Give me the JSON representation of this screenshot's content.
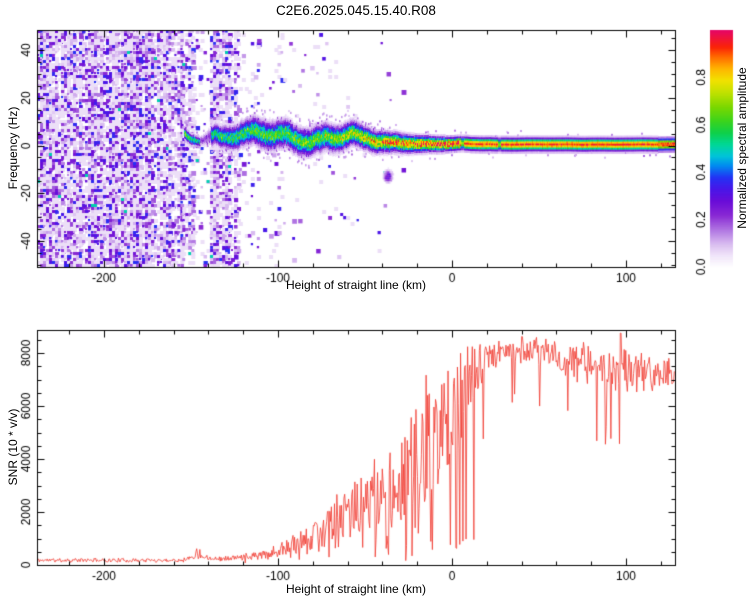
{
  "page": {
    "title": "C2E6.2025.045.15.40.R08",
    "background": "#ffffff"
  },
  "chart_data": [
    {
      "type": "heatmap",
      "name": "spectrogram",
      "title": "C2E6.2025.045.15.40.R08",
      "xlabel": "Height of straight line (km)",
      "ylabel": "Frequency (Hz)",
      "xlim": [
        -238.5,
        128.2
      ],
      "ylim": [
        -51,
        48.5
      ],
      "xticks": [
        -200,
        -100,
        0,
        100
      ],
      "yticks": [
        -40,
        -20,
        0,
        20,
        40
      ],
      "x_minor_step": 20,
      "y_minor_step": 5,
      "colorbar": {
        "label": "Normalized spectral amplitude",
        "tick_labels": [
          "0.0",
          "0.2",
          "0.4",
          "0.6",
          "0.8"
        ],
        "tick_values": [
          0,
          0.2,
          0.4,
          0.6,
          0.8
        ],
        "range": [
          0,
          1
        ]
      },
      "colormap": [
        [
          0.0,
          "#ffffff"
        ],
        [
          0.05,
          "#f1e6fa"
        ],
        [
          0.1,
          "#d9bcf0"
        ],
        [
          0.16,
          "#b075e2"
        ],
        [
          0.22,
          "#8a2ad4"
        ],
        [
          0.28,
          "#6a0dd8"
        ],
        [
          0.33,
          "#4a16e8"
        ],
        [
          0.38,
          "#2433f4"
        ],
        [
          0.43,
          "#008cf0"
        ],
        [
          0.47,
          "#00c4da"
        ],
        [
          0.52,
          "#00d896"
        ],
        [
          0.57,
          "#10d048"
        ],
        [
          0.62,
          "#3ed41c"
        ],
        [
          0.68,
          "#7ed800"
        ],
        [
          0.74,
          "#c3e200"
        ],
        [
          0.79,
          "#f2e200"
        ],
        [
          0.84,
          "#ffb400"
        ],
        [
          0.89,
          "#ff6a00"
        ],
        [
          0.93,
          "#fb2408"
        ],
        [
          1.0,
          "#e60766"
        ]
      ],
      "noise_regions": [
        [
          -238.5,
          -163,
          0.92
        ],
        [
          -163,
          -155,
          0.8
        ],
        [
          -155,
          -149,
          0.55
        ],
        [
          -149,
          -144.5,
          0.22
        ],
        [
          -144.5,
          -139,
          0.1
        ],
        [
          -139,
          -127,
          0.8
        ],
        [
          -127,
          -122.5,
          0.55
        ],
        [
          -122.5,
          -112,
          0.1
        ],
        [
          -112,
          -102,
          0.05
        ],
        [
          -102,
          -97,
          0.12
        ],
        [
          -97,
          -60,
          0.03
        ],
        [
          -60,
          -25,
          0.012
        ]
      ],
      "band": {
        "start_km": -153.5,
        "gap_km": [
          -145,
          -139
        ],
        "wiggle_end_km": 22,
        "center_hz": [
          [
            -153,
            5.2
          ],
          [
            -120,
            4.6
          ],
          [
            -70,
            3.4
          ],
          [
            -40,
            2.2
          ],
          [
            -20,
            1.1
          ],
          [
            0,
            0.85
          ],
          [
            128,
            0.8
          ]
        ],
        "halfwidth_hz": [
          [
            -153,
            1.8
          ],
          [
            -145,
            1.5
          ],
          [
            -138,
            3.0
          ],
          [
            -110,
            4.3
          ],
          [
            -70,
            4.0
          ],
          [
            -40,
            3.1
          ],
          [
            -20,
            2.5
          ],
          [
            0,
            2.1
          ],
          [
            128,
            2.0
          ]
        ],
        "amplitude": [
          [
            -153,
            0.62
          ],
          [
            -146,
            0.5
          ],
          [
            -138,
            0.56
          ],
          [
            -100,
            0.6
          ],
          [
            -70,
            0.66
          ],
          [
            -50,
            0.73
          ],
          [
            -35,
            0.85
          ],
          [
            -22,
            0.9
          ],
          [
            -10,
            0.94
          ],
          [
            5,
            0.96
          ],
          [
            128,
            0.97
          ]
        ],
        "core_blips_km": [
          6,
          27
        ],
        "blob": {
          "km": -37,
          "hz": -12.5,
          "amp": 0.34
        }
      },
      "seed": 7
    },
    {
      "type": "line",
      "name": "snr",
      "xlabel": "Height of straight line (km)",
      "ylabel": "SNR (10 * v/v)",
      "xlim": [
        -238.5,
        128.2
      ],
      "ylim": [
        0,
        8868
      ],
      "xticks": [
        -200,
        -100,
        0,
        100
      ],
      "yticks": [
        0,
        2000,
        4000,
        6000,
        8000
      ],
      "x_minor_step": 20,
      "y_minor_step": 500,
      "color": "#f03a30",
      "envelope": [
        [
          -238,
          180,
          90
        ],
        [
          -160,
          180,
          90
        ],
        [
          -152,
          220,
          120
        ],
        [
          -146,
          480,
          260
        ],
        [
          -142,
          300,
          150
        ],
        [
          -132,
          230,
          110
        ],
        [
          -120,
          300,
          150
        ],
        [
          -110,
          380,
          220
        ],
        [
          -100,
          520,
          320
        ],
        [
          -90,
          750,
          500
        ],
        [
          -80,
          1050,
          750
        ],
        [
          -70,
          1500,
          1000
        ],
        [
          -60,
          1900,
          1250
        ],
        [
          -50,
          2300,
          1500
        ],
        [
          -40,
          2700,
          1900
        ],
        [
          -30,
          3100,
          2300
        ],
        [
          -22,
          3500,
          2800
        ],
        [
          -16,
          4200,
          3300
        ],
        [
          -10,
          4800,
          3200
        ],
        [
          -4,
          5400,
          2800
        ],
        [
          2,
          6000,
          2400
        ],
        [
          8,
          6600,
          1900
        ],
        [
          14,
          7300,
          1200
        ],
        [
          22,
          7900,
          700
        ],
        [
          32,
          8150,
          550
        ],
        [
          45,
          8100,
          600
        ],
        [
          60,
          7900,
          700
        ],
        [
          75,
          7600,
          900
        ],
        [
          90,
          7400,
          1000
        ],
        [
          105,
          7300,
          900
        ],
        [
          120,
          7200,
          800
        ],
        [
          128,
          7100,
          700
        ]
      ],
      "spikes": [
        [
          97,
          8750
        ]
      ],
      "seed": 11
    }
  ],
  "frame_color": "#000000"
}
